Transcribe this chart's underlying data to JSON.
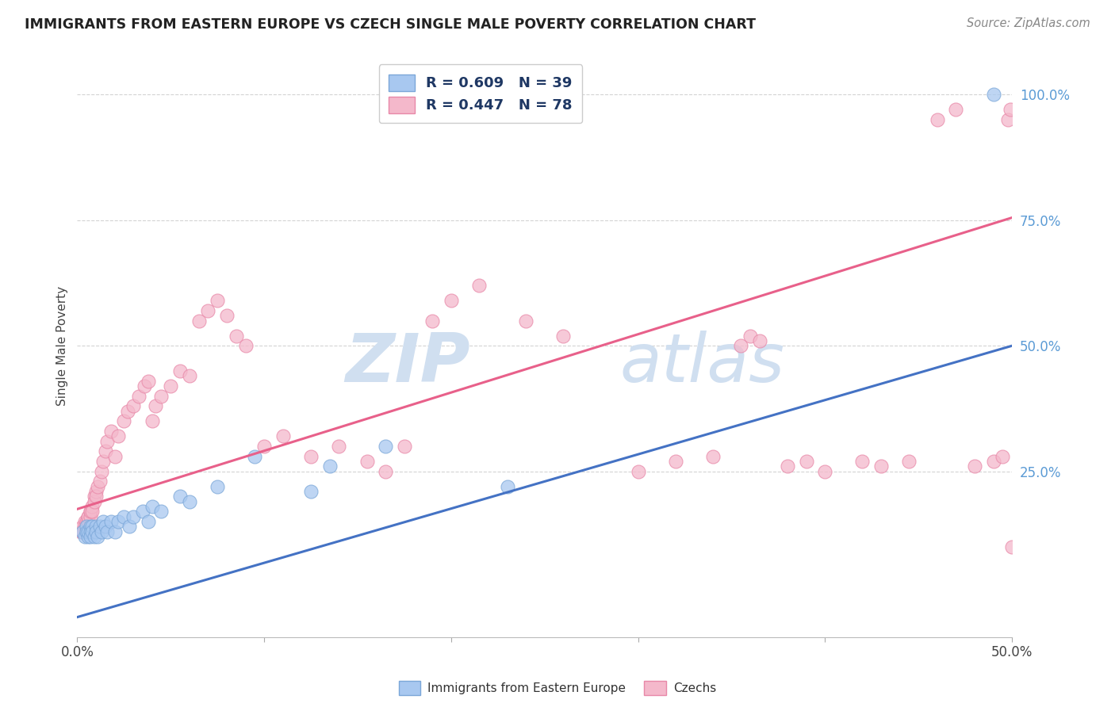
{
  "title": "IMMIGRANTS FROM EASTERN EUROPE VS CZECH SINGLE MALE POVERTY CORRELATION CHART",
  "source": "Source: ZipAtlas.com",
  "ylabel": "Single Male Poverty",
  "ytick_labels": [
    "100.0%",
    "75.0%",
    "50.0%",
    "25.0%"
  ],
  "ytick_values": [
    1.0,
    0.75,
    0.5,
    0.25
  ],
  "xlim": [
    0.0,
    0.5
  ],
  "ylim": [
    -0.08,
    1.08
  ],
  "blue_color": "#A8C8F0",
  "pink_color": "#F4B8CB",
  "blue_edge_color": "#7BA7D8",
  "pink_edge_color": "#E888A8",
  "blue_line_color": "#4472C4",
  "pink_line_color": "#E8608A",
  "legend_text_color": "#1F3864",
  "label_color": "#5B9BD5",
  "watermark_zip": "ZIP",
  "watermark_atlas": "atlas",
  "watermark_color": "#D0DFF0",
  "background_color": "#FFFFFF",
  "grid_color": "#D0D0D0",
  "blue_line_x0": 0.0,
  "blue_line_y0": -0.04,
  "blue_line_x1": 0.5,
  "blue_line_y1": 0.5,
  "pink_line_x0": 0.0,
  "pink_line_y0": 0.175,
  "pink_line_x1": 0.5,
  "pink_line_y1": 0.755,
  "blue_scatter_x": [
    0.003,
    0.004,
    0.005,
    0.005,
    0.006,
    0.006,
    0.007,
    0.007,
    0.007,
    0.008,
    0.008,
    0.009,
    0.01,
    0.01,
    0.011,
    0.012,
    0.013,
    0.014,
    0.015,
    0.016,
    0.018,
    0.02,
    0.022,
    0.025,
    0.028,
    0.03,
    0.035,
    0.038,
    0.04,
    0.045,
    0.055,
    0.06,
    0.075,
    0.095,
    0.125,
    0.135,
    0.165,
    0.23,
    0.49
  ],
  "blue_scatter_y": [
    0.13,
    0.12,
    0.14,
    0.13,
    0.12,
    0.13,
    0.14,
    0.13,
    0.12,
    0.14,
    0.13,
    0.12,
    0.14,
    0.13,
    0.12,
    0.14,
    0.13,
    0.15,
    0.14,
    0.13,
    0.15,
    0.13,
    0.15,
    0.16,
    0.14,
    0.16,
    0.17,
    0.15,
    0.18,
    0.17,
    0.2,
    0.19,
    0.22,
    0.28,
    0.21,
    0.26,
    0.3,
    0.22,
    1.0
  ],
  "pink_scatter_x": [
    0.002,
    0.003,
    0.003,
    0.004,
    0.004,
    0.005,
    0.005,
    0.006,
    0.006,
    0.006,
    0.007,
    0.007,
    0.007,
    0.008,
    0.008,
    0.009,
    0.009,
    0.01,
    0.01,
    0.011,
    0.012,
    0.013,
    0.014,
    0.015,
    0.016,
    0.018,
    0.02,
    0.022,
    0.025,
    0.027,
    0.03,
    0.033,
    0.036,
    0.038,
    0.04,
    0.042,
    0.045,
    0.05,
    0.055,
    0.06,
    0.065,
    0.07,
    0.075,
    0.08,
    0.085,
    0.09,
    0.1,
    0.11,
    0.125,
    0.14,
    0.155,
    0.165,
    0.175,
    0.19,
    0.2,
    0.215,
    0.24,
    0.26,
    0.3,
    0.32,
    0.34,
    0.355,
    0.36,
    0.365,
    0.38,
    0.39,
    0.4,
    0.42,
    0.43,
    0.445,
    0.46,
    0.47,
    0.48,
    0.49,
    0.495,
    0.498,
    0.499,
    0.5
  ],
  "pink_scatter_y": [
    0.13,
    0.14,
    0.13,
    0.15,
    0.14,
    0.15,
    0.14,
    0.16,
    0.15,
    0.16,
    0.17,
    0.16,
    0.17,
    0.18,
    0.17,
    0.2,
    0.19,
    0.21,
    0.2,
    0.22,
    0.23,
    0.25,
    0.27,
    0.29,
    0.31,
    0.33,
    0.28,
    0.32,
    0.35,
    0.37,
    0.38,
    0.4,
    0.42,
    0.43,
    0.35,
    0.38,
    0.4,
    0.42,
    0.45,
    0.44,
    0.55,
    0.57,
    0.59,
    0.56,
    0.52,
    0.5,
    0.3,
    0.32,
    0.28,
    0.3,
    0.27,
    0.25,
    0.3,
    0.55,
    0.59,
    0.62,
    0.55,
    0.52,
    0.25,
    0.27,
    0.28,
    0.5,
    0.52,
    0.51,
    0.26,
    0.27,
    0.25,
    0.27,
    0.26,
    0.27,
    0.95,
    0.97,
    0.26,
    0.27,
    0.28,
    0.95,
    0.97,
    0.1
  ]
}
